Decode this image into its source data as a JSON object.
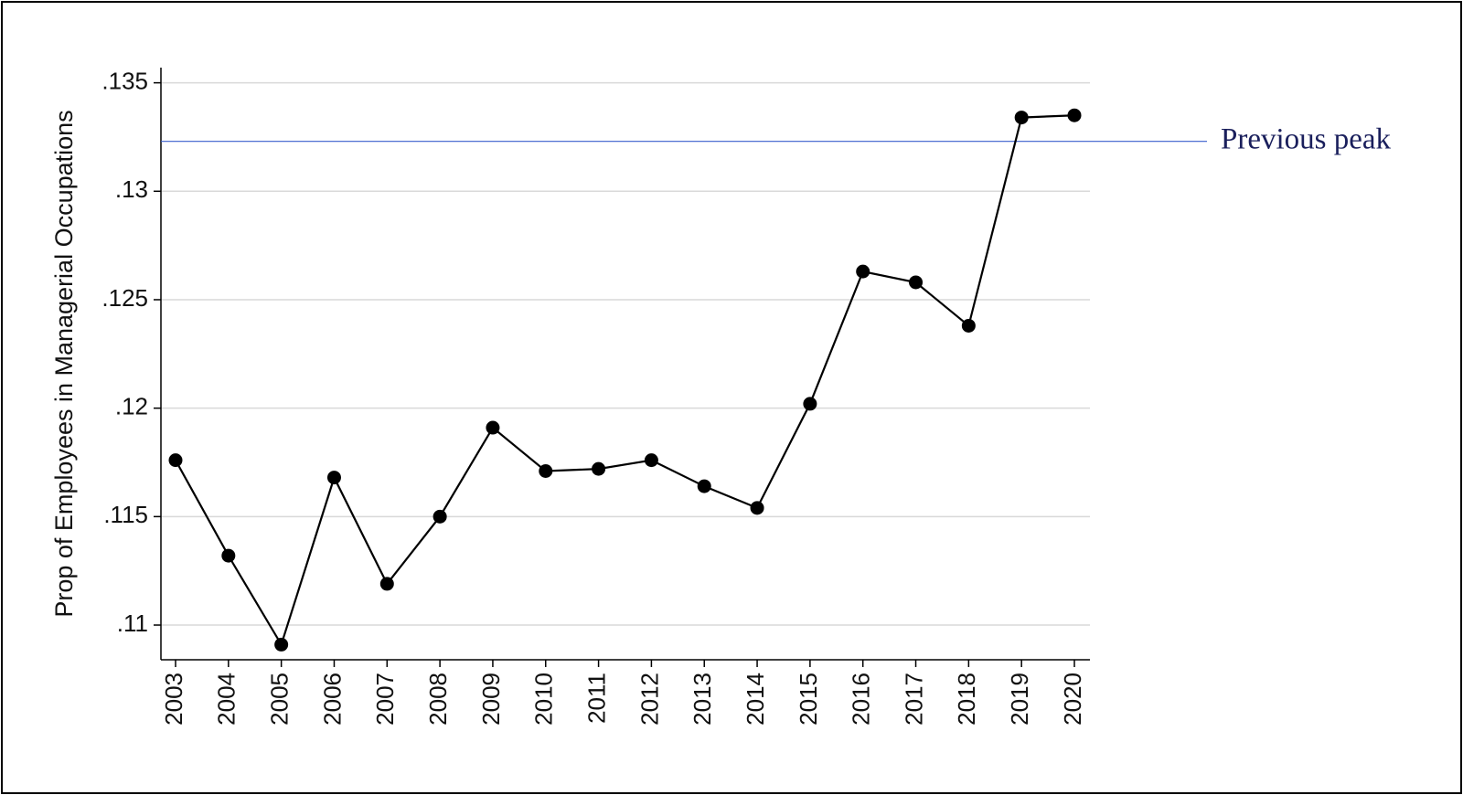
{
  "chart_data": {
    "type": "line",
    "y_label": "Prop of Employees in Managerial Occupations",
    "categories": [
      "2003",
      "2004",
      "2005",
      "2006",
      "2007",
      "2008",
      "2009",
      "2010",
      "2011",
      "2012",
      "2013",
      "2014",
      "2015",
      "2016",
      "2017",
      "2018",
      "2019",
      "2020"
    ],
    "values": [
      0.1176,
      0.1132,
      0.1091,
      0.1168,
      0.1119,
      0.115,
      0.1191,
      0.1171,
      0.1172,
      0.1176,
      0.1164,
      0.1154,
      0.1202,
      0.1263,
      0.1258,
      0.1238,
      0.1334,
      0.1335
    ],
    "color": "#000000",
    "ylim": [
      0.1084,
      0.1357
    ],
    "yticks": [
      {
        "value": 0.11,
        "label": ".11"
      },
      {
        "value": 0.115,
        "label": ".115"
      },
      {
        "value": 0.12,
        "label": ".12"
      },
      {
        "value": 0.125,
        "label": ".125"
      },
      {
        "value": 0.13,
        "label": ".13"
      },
      {
        "value": 0.135,
        "label": ".135"
      }
    ],
    "grid": true,
    "reference_line": {
      "value": 0.1323,
      "label": "Previous peak",
      "color": "#3a5fcd"
    }
  }
}
